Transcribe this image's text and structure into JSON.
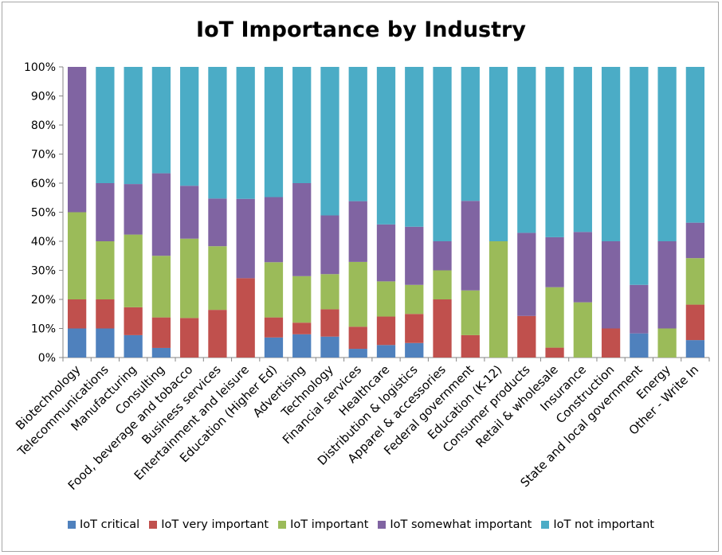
{
  "chart_data": {
    "type": "bar",
    "stacked": true,
    "percent": true,
    "title": "IoT Importance by Industry",
    "xlabel": "",
    "ylabel": "",
    "ylim": [
      0,
      100
    ],
    "yticks": [
      "0%",
      "10%",
      "20%",
      "30%",
      "40%",
      "50%",
      "60%",
      "70%",
      "80%",
      "90%",
      "100%"
    ],
    "grid": false,
    "legend_position": "bottom",
    "categories": [
      "Biotechnology",
      "Telecommunications",
      "Manufacturing",
      "Consulting",
      "Food, beverage and tobacco",
      "Business services",
      "Entertainment and leisure",
      "Education (Higher Ed)",
      "Advertising",
      "Technology",
      "Financial services",
      "Healthcare",
      "Distribution & logistics",
      "Apparel & accessories",
      "Federal government",
      "Education (K-12)",
      "Consumer products",
      "Retail & wholesale",
      "Insurance",
      "Construction",
      "State and local government",
      "Energy",
      "Other - Write In"
    ],
    "series": [
      {
        "name": "IoT critical",
        "color": "#4f81bd",
        "values": [
          10,
          10,
          7.7,
          3.3,
          0,
          0,
          0,
          6.9,
          8,
          7.2,
          3,
          4.3,
          5,
          0,
          0,
          0,
          0,
          0,
          0,
          0,
          8.3,
          0,
          6
        ]
      },
      {
        "name": "IoT very important",
        "color": "#c0504d",
        "values": [
          10,
          10,
          9.6,
          10.5,
          13.6,
          16.4,
          27.3,
          6.9,
          4,
          9.4,
          7.6,
          9.8,
          10,
          20,
          7.7,
          0,
          14.3,
          3.4,
          0,
          10,
          0,
          0,
          12.2
        ]
      },
      {
        "name": "IoT important",
        "color": "#9bbb59",
        "values": [
          30,
          20,
          25,
          21.2,
          27.3,
          21.9,
          0,
          19,
          16,
          12.1,
          22.3,
          12.1,
          10,
          10,
          15.4,
          40,
          0,
          20.8,
          19,
          0,
          0,
          10,
          16
        ]
      },
      {
        "name": "IoT somewhat important",
        "color": "#8064a2",
        "values": [
          50,
          20,
          17.4,
          28.4,
          18.2,
          16.4,
          27.3,
          22.4,
          32,
          20.2,
          20.9,
          19.6,
          20,
          10,
          30.8,
          0,
          28.6,
          17.2,
          24.2,
          30,
          16.7,
          30,
          12.2
        ]
      },
      {
        "name": "IoT not important",
        "color": "#4bacc6",
        "values": [
          0,
          40,
          40.3,
          36.6,
          40.9,
          45.3,
          45.4,
          44.8,
          40,
          51.1,
          46.2,
          54.2,
          55,
          60,
          46.1,
          60,
          57.1,
          58.6,
          56.8,
          60,
          75,
          60,
          53.6
        ]
      }
    ]
  }
}
